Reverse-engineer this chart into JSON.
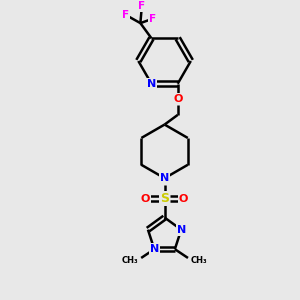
{
  "background_color": "#e8e8e8",
  "bond_color": "#000000",
  "N_color": "#0000ff",
  "O_color": "#ff0000",
  "S_color": "#cccc00",
  "F_color": "#ff00ff",
  "figsize": [
    3.0,
    3.0
  ],
  "dpi": 100,
  "xlim": [
    0,
    10
  ],
  "ylim": [
    0,
    10
  ]
}
